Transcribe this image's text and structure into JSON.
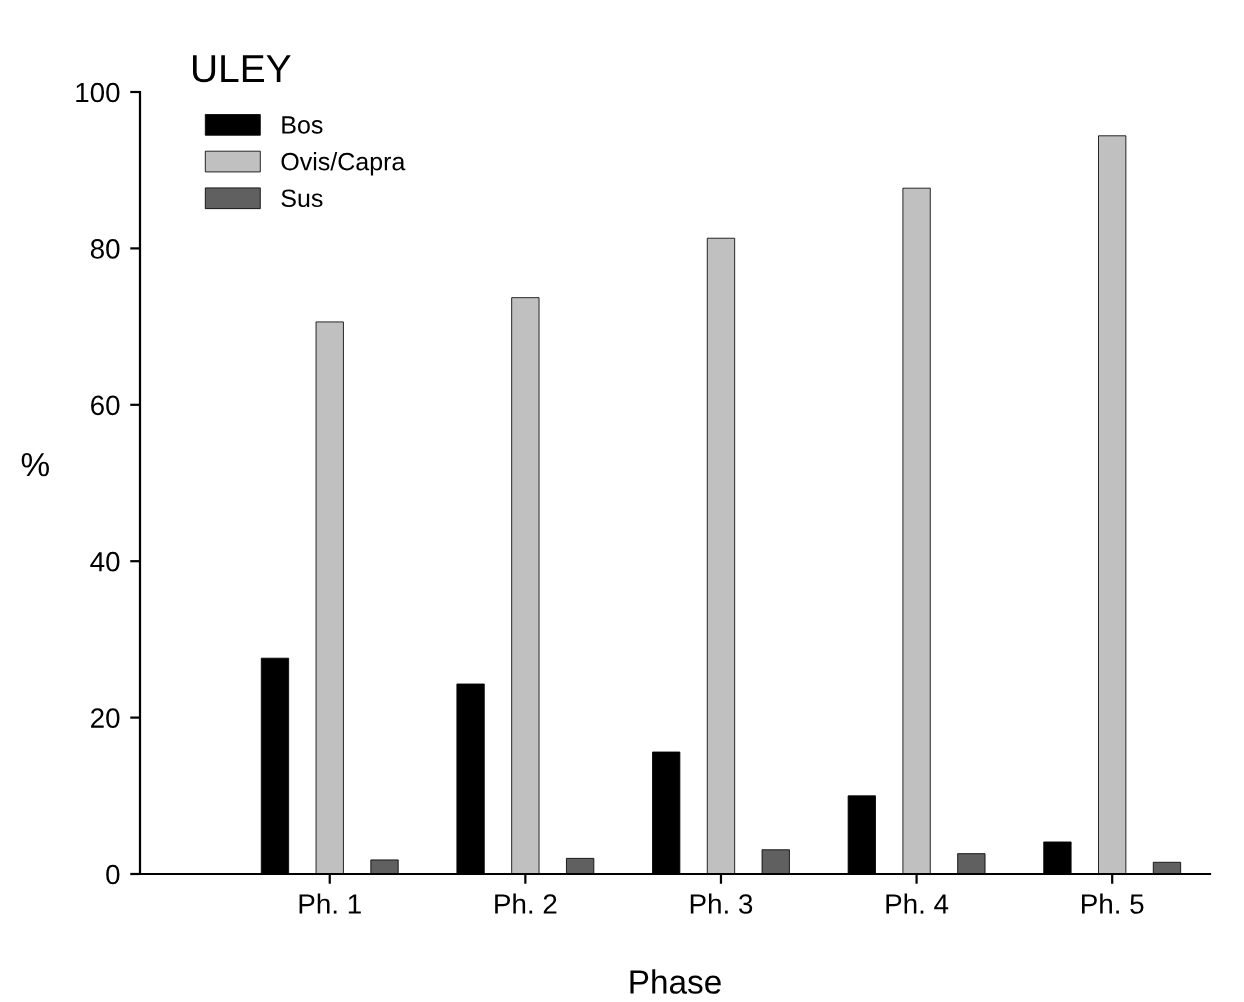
{
  "chart_data": {
    "type": "bar",
    "title": "ULEY",
    "xlabel": "Phase",
    "ylabel": "%",
    "categories": [
      "Ph. 1",
      "Ph. 2",
      "Ph. 3",
      "Ph. 4",
      "Ph. 5"
    ],
    "series": [
      {
        "name": "Bos",
        "color": "#000000",
        "values": [
          27.6,
          24.3,
          15.6,
          10.0,
          4.1
        ]
      },
      {
        "name": "Ovis/Capra",
        "color": "#c0c0c0",
        "values": [
          70.6,
          73.7,
          81.3,
          87.7,
          94.4
        ]
      },
      {
        "name": "Sus",
        "color": "#606060",
        "values": [
          1.8,
          2.0,
          3.1,
          2.6,
          1.5
        ]
      }
    ],
    "ylim": [
      0,
      100
    ],
    "yticks": [
      0,
      20,
      40,
      60,
      80,
      100
    ],
    "grid": false,
    "legend": "top left"
  }
}
